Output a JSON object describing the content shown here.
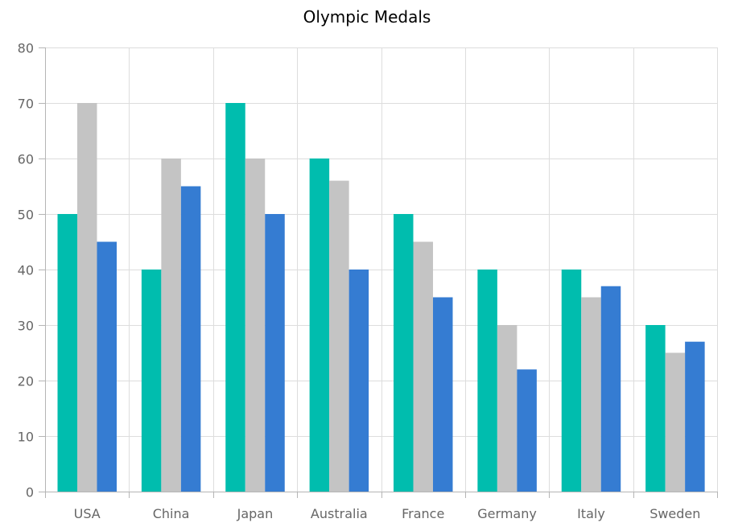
{
  "chart_data": {
    "type": "bar",
    "title": "Olympic Medals",
    "xlabel": "",
    "ylabel": "",
    "categories": [
      "USA",
      "China",
      "Japan",
      "Australia",
      "France",
      "Germany",
      "Italy",
      "Sweden"
    ],
    "series": [
      {
        "values": [
          50,
          40,
          70,
          60,
          50,
          40,
          40,
          30
        ],
        "color": "#00bdae"
      },
      {
        "values": [
          70,
          60,
          60,
          56,
          45,
          30,
          35,
          25
        ],
        "color": "#c4c4c4"
      },
      {
        "values": [
          45,
          55,
          50,
          40,
          35,
          22,
          37,
          27
        ],
        "color": "#357cd2"
      }
    ],
    "ylim": [
      0,
      80
    ],
    "yticks": [
      0,
      10,
      20,
      30,
      40,
      50,
      60,
      70,
      80
    ],
    "grid": true,
    "legend": "none"
  },
  "colors": {
    "grid": "#dddddd",
    "axis": "#b5b5b5",
    "tick_text": "#666666",
    "title_text": "#000000"
  }
}
